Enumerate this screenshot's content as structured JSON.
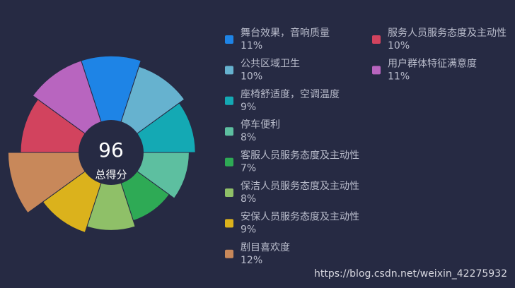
{
  "chart_data": {
    "type": "pie",
    "rose": true,
    "center_value": 96,
    "center_label": "总得分",
    "categories": [
      "舞台效果，音响质量",
      "公共区域卫生",
      "座椅舒适度，空调温度",
      "停车便利",
      "客服人员服务态度及主动性",
      "保洁人员服务态度及主动性",
      "安保人员服务态度及主动性",
      "剧目喜欢度",
      "服务人员服务态度及主动性",
      "用户群体特征满意度"
    ],
    "values": [
      11,
      10,
      9,
      8,
      7,
      8,
      9,
      12,
      10,
      11
    ],
    "value_labels": [
      "11%",
      "10%",
      "9%",
      "8%",
      "7%",
      "8%",
      "9%",
      "12%",
      "10%",
      "11%"
    ],
    "colors": [
      "#1e84e6",
      "#66b2cf",
      "#14a9b4",
      "#5dbfa0",
      "#2eaa55",
      "#8fc068",
      "#dbb21c",
      "#c8885a",
      "#d2435e",
      "#b865bf"
    ]
  },
  "watermark": "https://blog.csdn.net/weixin_42275932"
}
